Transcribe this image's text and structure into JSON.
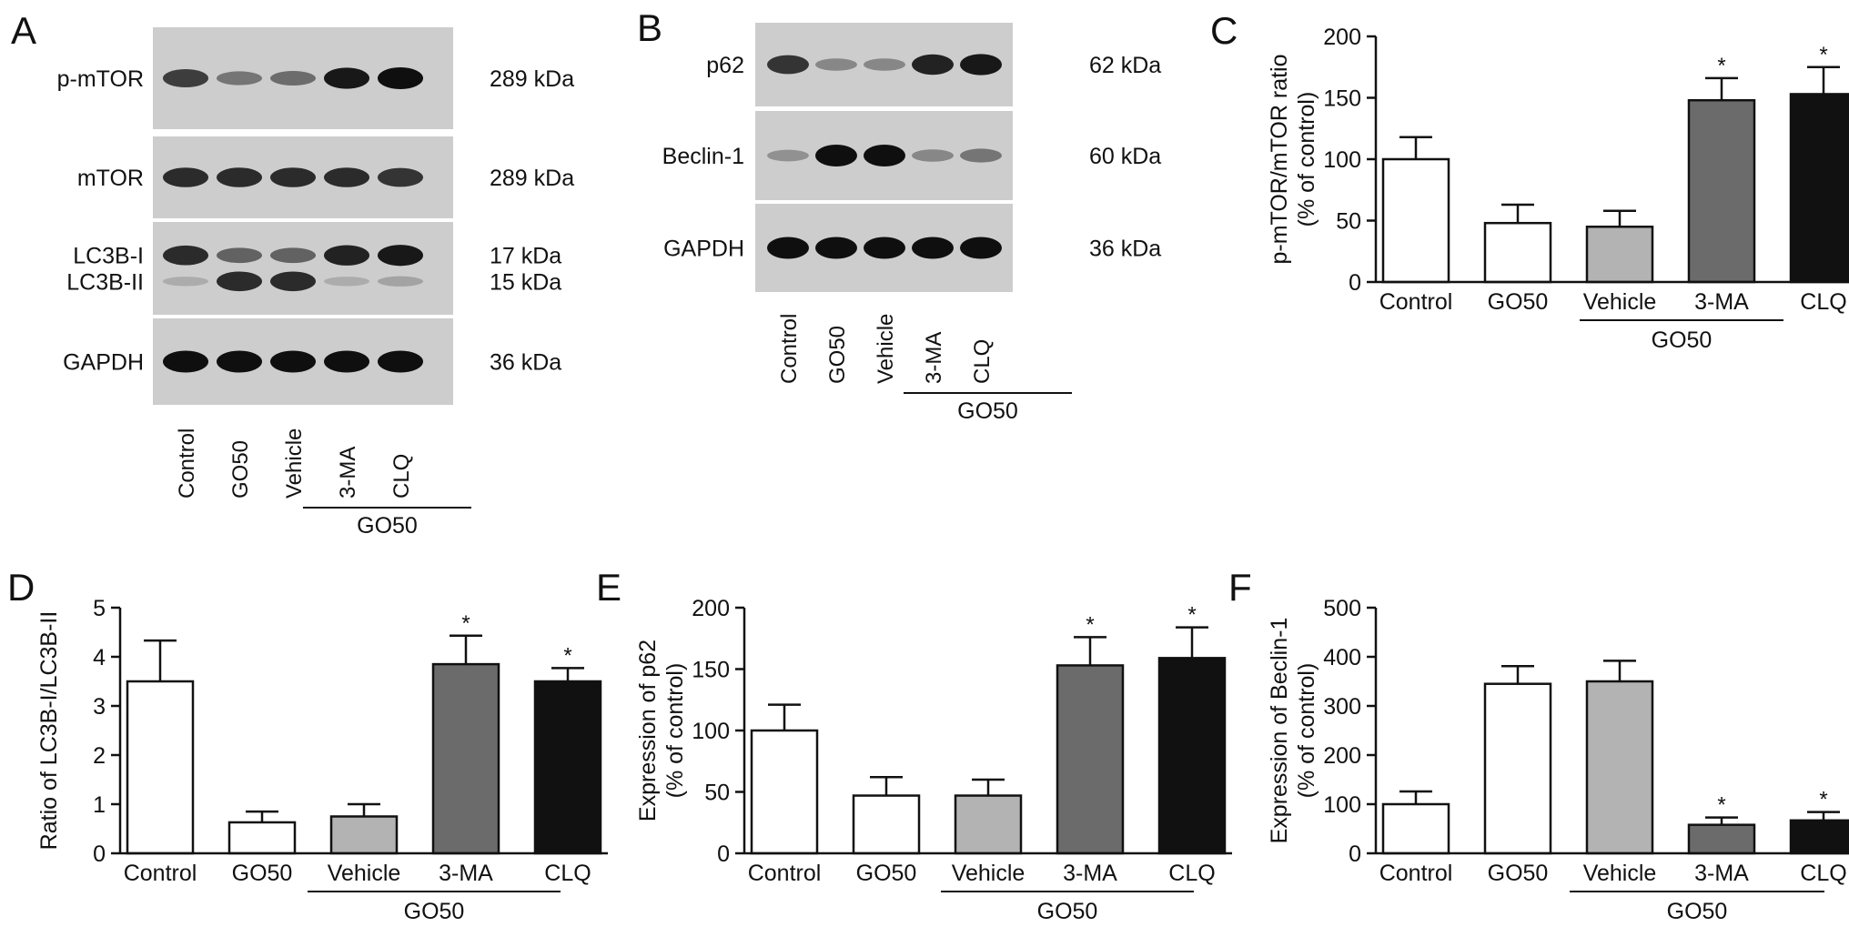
{
  "figure": {
    "panels": [
      {
        "letter": "A",
        "type": "blot",
        "lanes": [
          "Control",
          "GO50",
          "Vehicle",
          "3-MA",
          "CLQ"
        ],
        "group_label": "GO50",
        "rows": [
          {
            "labels": [
              "p-mTOR"
            ],
            "sizes": [
              "289 kDa"
            ],
            "bands": [
              [
                0.75,
                0.45,
                0.5,
                0.95,
                1.0
              ]
            ]
          },
          {
            "labels": [
              "mTOR"
            ],
            "sizes": [
              "289 kDa"
            ],
            "bands": [
              [
                0.85,
                0.85,
                0.85,
                0.85,
                0.8
              ]
            ]
          },
          {
            "labels": [
              "LC3B-I",
              "LC3B-II"
            ],
            "sizes": [
              "17 kDa",
              "15 kDa"
            ],
            "bands": [
              [
                0.85,
                0.55,
                0.55,
                0.9,
                0.95
              ],
              [
                0.15,
                0.85,
                0.85,
                0.15,
                0.2
              ]
            ]
          },
          {
            "labels": [
              "GAPDH"
            ],
            "sizes": [
              "36 kDa"
            ],
            "bands": [
              [
                1.0,
                1.0,
                1.0,
                1.0,
                1.0
              ]
            ]
          }
        ]
      },
      {
        "letter": "B",
        "type": "blot",
        "lanes": [
          "Control",
          "GO50",
          "Vehicle",
          "3-MA",
          "CLQ"
        ],
        "group_label": "GO50",
        "rows": [
          {
            "labels": [
              "p62"
            ],
            "sizes": [
              "62 kDa"
            ],
            "bands": [
              [
                0.8,
                0.35,
                0.35,
                0.9,
                0.95
              ]
            ]
          },
          {
            "labels": [
              "Beclin-1"
            ],
            "sizes": [
              "60 kDa"
            ],
            "bands": [
              [
                0.3,
                1.0,
                1.0,
                0.35,
                0.45
              ]
            ]
          },
          {
            "labels": [
              "GAPDH"
            ],
            "sizes": [
              "36 kDa"
            ],
            "bands": [
              [
                1.0,
                1.0,
                1.0,
                1.0,
                1.0
              ]
            ]
          }
        ]
      }
    ]
  },
  "chart_data": [
    {
      "letter": "C",
      "type": "bar",
      "categories": [
        "Control",
        "GO50",
        "Vehicle",
        "3-MA",
        "CLQ"
      ],
      "values": [
        100,
        48,
        45,
        148,
        153
      ],
      "errors": [
        18,
        15,
        13,
        18,
        22
      ],
      "significance": [
        "",
        "",
        "",
        "*",
        "*"
      ],
      "bar_colors": [
        "#ffffff",
        "#ffffff",
        "#b3b3b3",
        "#6b6b6b",
        "#111111"
      ],
      "ylabel": "p-mTOR/mTOR ratio (% of control)",
      "ylim": [
        0,
        200
      ],
      "yticks": [
        0,
        50,
        100,
        150,
        200
      ],
      "group_label": "GO50"
    },
    {
      "letter": "D",
      "type": "bar",
      "categories": [
        "Control",
        "GO50",
        "Vehicle",
        "3-MA",
        "CLQ"
      ],
      "values": [
        3.5,
        0.63,
        0.75,
        3.85,
        3.5
      ],
      "errors": [
        0.83,
        0.22,
        0.25,
        0.58,
        0.27
      ],
      "significance": [
        "",
        "",
        "",
        "*",
        "*"
      ],
      "bar_colors": [
        "#ffffff",
        "#ffffff",
        "#b3b3b3",
        "#6b6b6b",
        "#111111"
      ],
      "ylabel": "Ratio of LC3B-I/LC3B-II",
      "ylim": [
        0,
        5
      ],
      "yticks": [
        0,
        1,
        2,
        3,
        4,
        5
      ],
      "group_label": "GO50"
    },
    {
      "letter": "E",
      "type": "bar",
      "categories": [
        "Control",
        "GO50",
        "Vehicle",
        "3-MA",
        "CLQ"
      ],
      "values": [
        100,
        47,
        47,
        153,
        159
      ],
      "errors": [
        21,
        15,
        13,
        23,
        25
      ],
      "significance": [
        "",
        "",
        "",
        "*",
        "*"
      ],
      "bar_colors": [
        "#ffffff",
        "#ffffff",
        "#b3b3b3",
        "#6b6b6b",
        "#111111"
      ],
      "ylabel": "Expression of p62 (% of control)",
      "ylim": [
        0,
        200
      ],
      "yticks": [
        0,
        50,
        100,
        150,
        200
      ],
      "group_label": "GO50"
    },
    {
      "letter": "F",
      "type": "bar",
      "categories": [
        "Control",
        "GO50",
        "Vehicle",
        "3-MA",
        "CLQ"
      ],
      "values": [
        100,
        345,
        350,
        58,
        67
      ],
      "errors": [
        26,
        36,
        42,
        15,
        17
      ],
      "significance": [
        "",
        "",
        "",
        "*",
        "*"
      ],
      "bar_colors": [
        "#ffffff",
        "#ffffff",
        "#b3b3b3",
        "#6b6b6b",
        "#111111"
      ],
      "ylabel": "Expression of Beclin-1 (% of control)",
      "ylim": [
        0,
        500
      ],
      "yticks": [
        0,
        100,
        200,
        300,
        400,
        500
      ],
      "group_label": "GO50"
    }
  ]
}
